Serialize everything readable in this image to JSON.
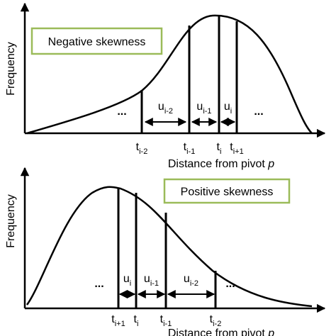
{
  "panels": [
    {
      "y_axis_label": "Frequency",
      "box_label": "Negative skewness",
      "x_axis_label": {
        "text": "Distance from pivot ",
        "variable": "p"
      },
      "ellipses": [
        "...",
        "..."
      ],
      "intervals": [
        {
          "base": "u",
          "sub": "i-2"
        },
        {
          "base": "u",
          "sub": "i-1"
        },
        {
          "base": "u",
          "sub": "i"
        }
      ],
      "thresholds": [
        {
          "base": "t",
          "sub": "i-2"
        },
        {
          "base": "t",
          "sub": "i-1"
        },
        {
          "base": "t",
          "sub": "i"
        },
        {
          "base": "t",
          "sub": "i+1"
        }
      ]
    },
    {
      "y_axis_label": "Frequency",
      "box_label": "Positive skewness",
      "x_axis_label": {
        "text": "Distance from pivot ",
        "variable": "p"
      },
      "ellipses": [
        "...",
        "..."
      ],
      "intervals": [
        {
          "base": "u",
          "sub": "i"
        },
        {
          "base": "u",
          "sub": "i-1"
        },
        {
          "base": "u",
          "sub": "i-2"
        }
      ],
      "thresholds": [
        {
          "base": "t",
          "sub": "i+1"
        },
        {
          "base": "t",
          "sub": "i"
        },
        {
          "base": "t",
          "sub": "i-1"
        },
        {
          "base": "t",
          "sub": "i-2"
        }
      ]
    }
  ]
}
